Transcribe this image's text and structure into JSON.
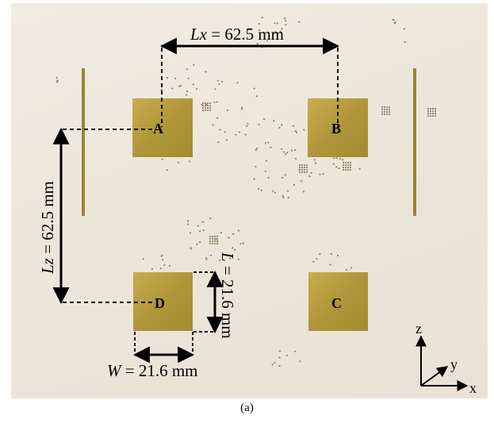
{
  "figure": {
    "caption": "(a)",
    "pads": [
      {
        "letter": "A"
      },
      {
        "letter": "B"
      },
      {
        "letter": "C"
      },
      {
        "letter": "D"
      }
    ],
    "dimensions": {
      "lx_var": "Lx",
      "lx_value": " = 62.5 mm",
      "lz_var": "Lz",
      "lz_value": " = 62.5 mm",
      "l_var": "L",
      "l_value": " = 21.6 mm",
      "w_var": "W",
      "w_value": " = 21.6 mm"
    },
    "axes": {
      "z": "z",
      "y": "y",
      "x": "x"
    },
    "colors": {
      "background": "#ece6da",
      "pad": "#b39a3e",
      "dots": "#8f8466",
      "annotation": "#000000"
    }
  }
}
